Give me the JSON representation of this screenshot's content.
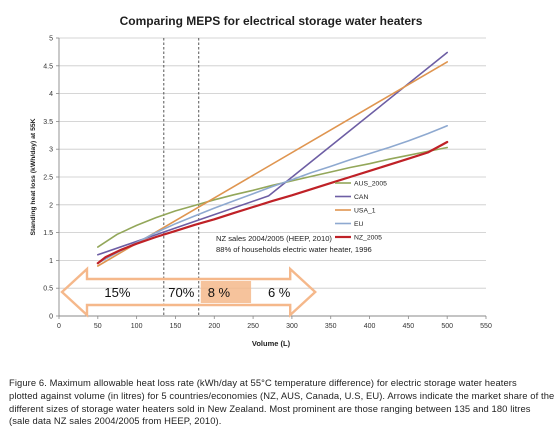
{
  "chart_data": {
    "type": "line",
    "title": "Comparing MEPS for electrical storage water heaters",
    "xlabel": "Volume (L)",
    "ylabel": "Standing heat loss (kWh/day) at 55K",
    "xlim": [
      0,
      550
    ],
    "ylim": [
      0,
      5
    ],
    "xticks": [
      "0",
      "50",
      "100",
      "150",
      "200",
      "250",
      "300",
      "350",
      "400",
      "450",
      "500",
      "550"
    ],
    "yticks": [
      "0",
      "0.5",
      "1",
      "1.5",
      "2",
      "2.5",
      "3",
      "3.5",
      "4",
      "4.5",
      "5"
    ],
    "grid": "horizontal",
    "legend_position": "right",
    "series": [
      {
        "name": "AUS_2005",
        "color": "#93a75a",
        "x": [
          50,
          75,
          100,
          125,
          150,
          175,
          200,
          225,
          250,
          275,
          300,
          325,
          350,
          375,
          400,
          425,
          450,
          475,
          500
        ],
        "y": [
          1.24,
          1.47,
          1.63,
          1.77,
          1.89,
          1.99,
          2.09,
          2.18,
          2.26,
          2.35,
          2.43,
          2.51,
          2.59,
          2.67,
          2.74,
          2.82,
          2.89,
          2.96,
          3.03
        ]
      },
      {
        "name": "CAN",
        "color": "#6d5ea4",
        "x": [
          50,
          270,
          500
        ],
        "y": [
          1.1,
          2.16,
          4.74
        ]
      },
      {
        "name": "USA_1",
        "color": "#df9550",
        "x": [
          50,
          500
        ],
        "y": [
          0.9,
          4.57
        ]
      },
      {
        "name": "EU",
        "color": "#8ea9d0",
        "x": [
          50,
          75,
          100,
          125,
          150,
          175,
          200,
          225,
          250,
          275,
          300,
          325,
          350,
          375,
          400,
          425,
          450,
          475,
          500
        ],
        "y": [
          0.95,
          1.14,
          1.32,
          1.5,
          1.66,
          1.8,
          1.94,
          2.07,
          2.2,
          2.33,
          2.45,
          2.58,
          2.69,
          2.81,
          2.92,
          3.03,
          3.15,
          3.28,
          3.42
        ]
      },
      {
        "name": "NZ_2005",
        "color": "#bf2127",
        "x": [
          50,
          60,
          80,
          100,
          125,
          150,
          175,
          200,
          225,
          250,
          275,
          300,
          325,
          350,
          375,
          400,
          425,
          450,
          475,
          500
        ],
        "y": [
          0.95,
          1.06,
          1.19,
          1.3,
          1.42,
          1.53,
          1.64,
          1.74,
          1.85,
          1.96,
          2.07,
          2.17,
          2.28,
          2.39,
          2.5,
          2.61,
          2.72,
          2.83,
          2.94,
          3.13
        ]
      }
    ],
    "reference_lines": [
      135,
      180
    ],
    "annotation": {
      "line1": "NZ sales 2004/2005  (HEEP, 2010)",
      "line2": "88% of households electric water heater, 1996"
    },
    "market_share": {
      "color": "#f5b88b",
      "segments": [
        {
          "label": "15%",
          "from": 0,
          "to": 135,
          "highlight": false
        },
        {
          "label": "70%",
          "from": 135,
          "to": 180,
          "highlight": false
        },
        {
          "label": "8 %",
          "from": 180,
          "to": 250,
          "highlight": true
        },
        {
          "label": "6 %",
          "from": 250,
          "to": 330,
          "highlight": false
        }
      ]
    }
  },
  "caption": {
    "line1": "Figure 6. Maximum allowable heat loss rate (kWh/day at 55°C temperature difference) for electric storage water heaters",
    "line2": "plotted against volume (in litres) for 5 countries/economies (NZ, AUS, Canada, U.S, EU). Arrows indicate the market share of the",
    "line3": "different sizes of storage water heaters sold in New Zealand. Most prominent are those ranging between 135 and 180 litres",
    "line4": "(sale data NZ sales 2004/2005 from HEEP, 2010)."
  }
}
